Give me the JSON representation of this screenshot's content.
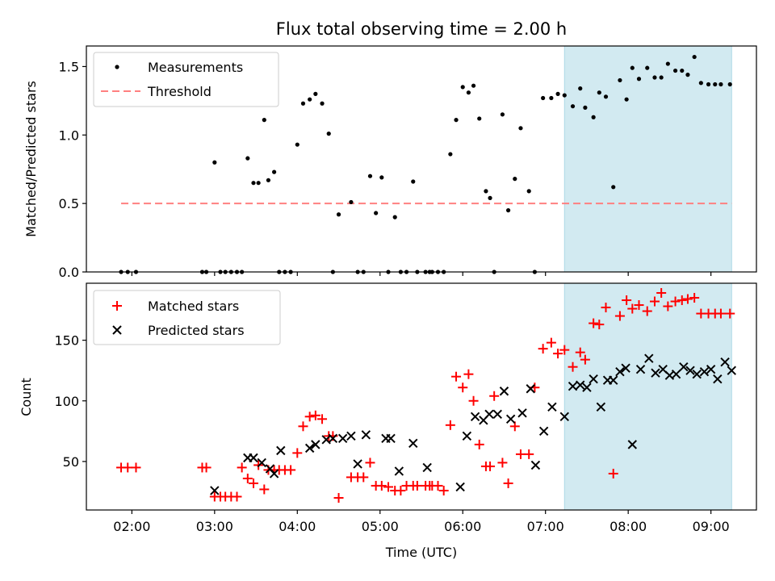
{
  "chart_data": [
    {
      "type": "scatter",
      "title": "Flux total observing time = 2.00 h",
      "xlabel": "",
      "ylabel": "Matched/Predicted stars",
      "x_unit": "hours (UTC)",
      "xlim": [
        1.45,
        9.55
      ],
      "ylim": [
        0,
        1.65
      ],
      "yticks": [
        0.0,
        0.5,
        1.0,
        1.5
      ],
      "ytick_labels": [
        "0.0",
        "0.5",
        "1.0",
        "1.5"
      ],
      "grid": false,
      "legend_position": "upper-left",
      "shaded_region": {
        "x_start": 7.23,
        "x_end": 9.25,
        "color": "#add8e6"
      },
      "threshold": {
        "name": "Threshold",
        "value": 0.5,
        "x_start": 1.87,
        "x_end": 9.25,
        "color": "#ff8080"
      },
      "series": [
        {
          "name": "Measurements",
          "color": "#000000",
          "marker": "dot",
          "x": [
            1.87,
            1.95,
            2.05,
            2.85,
            2.9,
            3.0,
            3.07,
            3.13,
            3.2,
            3.27,
            3.33,
            3.4,
            3.47,
            3.53,
            3.6,
            3.65,
            3.72,
            3.78,
            3.85,
            3.92,
            4.0,
            4.07,
            4.15,
            4.22,
            4.3,
            4.38,
            4.43,
            4.5,
            4.65,
            4.73,
            4.8,
            4.88,
            4.95,
            5.02,
            5.1,
            5.18,
            5.25,
            5.32,
            5.4,
            5.45,
            5.55,
            5.6,
            5.63,
            5.7,
            5.77,
            5.85,
            5.92,
            6.0,
            6.07,
            6.13,
            6.2,
            6.28,
            6.33,
            6.38,
            6.48,
            6.55,
            6.63,
            6.7,
            6.8,
            6.87,
            6.97,
            7.07,
            7.15,
            7.23,
            7.33,
            7.42,
            7.48,
            7.58,
            7.65,
            7.73,
            7.82,
            7.9,
            7.98,
            8.05,
            8.13,
            8.23,
            8.32,
            8.4,
            8.48,
            8.57,
            8.65,
            8.72,
            8.8,
            8.88,
            8.97,
            9.05,
            9.12,
            9.23
          ],
          "y": [
            0.0,
            0.0,
            0.0,
            0.0,
            0.0,
            0.8,
            0.0,
            0.0,
            0.0,
            0.0,
            0.0,
            0.83,
            0.65,
            0.65,
            1.11,
            0.67,
            0.73,
            0.0,
            0.0,
            0.0,
            0.93,
            1.23,
            1.26,
            1.3,
            1.23,
            1.01,
            0.0,
            0.42,
            0.51,
            0.0,
            0.0,
            0.7,
            0.43,
            0.69,
            0.0,
            0.4,
            0.0,
            0.0,
            0.66,
            0.0,
            0.0,
            0.0,
            0.0,
            0.0,
            0.0,
            0.86,
            1.11,
            1.35,
            1.31,
            1.36,
            1.12,
            0.59,
            0.54,
            0.0,
            1.15,
            0.45,
            0.68,
            1.05,
            0.59,
            0.0,
            1.27,
            1.27,
            1.3,
            1.29,
            1.21,
            1.34,
            1.2,
            1.13,
            1.31,
            1.28,
            0.62,
            1.4,
            1.26,
            1.49,
            1.41,
            1.49,
            1.42,
            1.42,
            1.52,
            1.47,
            1.47,
            1.44,
            1.57,
            1.38,
            1.37,
            1.37,
            1.37,
            1.37
          ]
        }
      ]
    },
    {
      "type": "scatter",
      "title": "",
      "xlabel": "Time (UTC)",
      "ylabel": "Count",
      "x_unit": "hours (UTC)",
      "xlim": [
        1.45,
        9.55
      ],
      "ylim": [
        10,
        197
      ],
      "xticks": [
        2,
        3,
        4,
        5,
        6,
        7,
        8,
        9
      ],
      "xtick_labels": [
        "02:00",
        "03:00",
        "04:00",
        "05:00",
        "06:00",
        "07:00",
        "08:00",
        "09:00"
      ],
      "yticks": [
        50,
        100,
        150
      ],
      "ytick_labels": [
        "50",
        "100",
        "150"
      ],
      "grid": false,
      "legend_position": "upper-left",
      "shaded_region": {
        "x_start": 7.23,
        "x_end": 9.25,
        "color": "#add8e6"
      },
      "series": [
        {
          "name": "Matched stars",
          "color": "#ff0000",
          "marker": "plus",
          "x": [
            1.87,
            1.95,
            2.05,
            2.85,
            2.9,
            3.0,
            3.07,
            3.13,
            3.2,
            3.27,
            3.33,
            3.4,
            3.47,
            3.53,
            3.6,
            3.65,
            3.72,
            3.78,
            3.85,
            3.92,
            4.0,
            4.07,
            4.15,
            4.22,
            4.3,
            4.38,
            4.43,
            4.5,
            4.65,
            4.73,
            4.8,
            4.88,
            4.95,
            5.02,
            5.1,
            5.18,
            5.25,
            5.32,
            5.4,
            5.45,
            5.55,
            5.6,
            5.63,
            5.7,
            5.77,
            5.85,
            5.92,
            6.0,
            6.07,
            6.13,
            6.2,
            6.28,
            6.33,
            6.38,
            6.48,
            6.55,
            6.63,
            6.7,
            6.8,
            6.87,
            6.97,
            7.07,
            7.15,
            7.23,
            7.33,
            7.42,
            7.48,
            7.58,
            7.65,
            7.73,
            7.82,
            7.9,
            7.98,
            8.05,
            8.13,
            8.23,
            8.32,
            8.4,
            8.48,
            8.57,
            8.65,
            8.72,
            8.8,
            8.88,
            8.97,
            9.05,
            9.12,
            9.23
          ],
          "y": [
            45,
            45,
            45,
            45,
            45,
            21,
            21,
            21,
            21,
            21,
            45,
            36,
            32,
            47,
            27,
            43,
            43,
            43,
            43,
            43,
            57,
            79,
            87,
            88,
            85,
            71,
            71,
            20,
            37,
            37,
            37,
            49,
            30,
            30,
            29,
            26,
            26,
            30,
            30,
            30,
            30,
            30,
            30,
            30,
            26,
            80,
            120,
            111,
            122,
            100,
            64,
            46,
            46,
            104,
            49,
            32,
            79,
            56,
            56,
            111,
            143,
            148,
            139,
            142,
            128,
            140,
            134,
            164,
            163,
            177,
            40,
            170,
            183,
            176,
            179,
            174,
            182,
            189,
            178,
            182,
            183,
            184,
            185,
            172,
            172,
            172,
            172,
            172
          ]
        },
        {
          "name": "Predicted stars",
          "color": "#000000",
          "marker": "x",
          "x": [
            3.0,
            3.4,
            3.47,
            3.57,
            3.67,
            3.72,
            3.8,
            4.15,
            4.22,
            4.35,
            4.43,
            4.55,
            4.65,
            4.73,
            4.83,
            5.07,
            5.13,
            5.23,
            5.4,
            5.57,
            5.97,
            6.05,
            6.15,
            6.25,
            6.32,
            6.42,
            6.5,
            6.58,
            6.72,
            6.82,
            6.88,
            6.98,
            7.08,
            7.23,
            7.33,
            7.42,
            7.5,
            7.58,
            7.67,
            7.75,
            7.82,
            7.9,
            7.97,
            8.05,
            8.15,
            8.25,
            8.33,
            8.42,
            8.5,
            8.58,
            8.67,
            8.75,
            8.83,
            8.92,
            9.0,
            9.08,
            9.17,
            9.25
          ],
          "y": [
            26,
            53,
            53,
            49,
            44,
            40,
            59,
            61,
            64,
            68,
            69,
            69,
            71,
            48,
            72,
            69,
            69,
            42,
            65,
            45,
            29,
            71,
            87,
            84,
            89,
            89,
            108,
            85,
            90,
            110,
            47,
            75,
            95,
            87,
            112,
            113,
            111,
            118,
            95,
            117,
            117,
            124,
            127,
            64,
            126,
            135,
            123,
            126,
            121,
            122,
            128,
            125,
            122,
            124,
            126,
            118,
            132,
            125
          ]
        }
      ]
    }
  ]
}
